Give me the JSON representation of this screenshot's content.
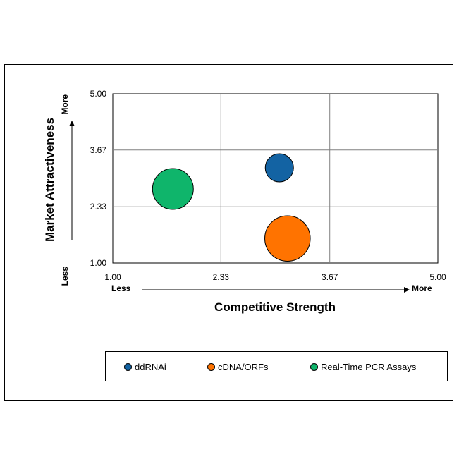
{
  "chart_data": {
    "type": "bubble",
    "title": "",
    "xlabel": "Competitive Strength",
    "ylabel": "Market Attractiveness",
    "x_low_label": "Less",
    "x_high_label": "More",
    "y_low_label": "Less",
    "y_high_label": "More",
    "xlim": [
      1.0,
      5.0
    ],
    "ylim": [
      1.0,
      5.0
    ],
    "xticks": [
      "1.00",
      "2.33",
      "3.67",
      "5.00"
    ],
    "yticks": [
      "1.00",
      "2.33",
      "3.67",
      "5.00"
    ],
    "grid": true,
    "legend_position": "bottom",
    "series": [
      {
        "name": "ddRNAi",
        "x": 3.05,
        "y": 3.25,
        "size": 1.0,
        "color": "#1363a3"
      },
      {
        "name": "cDNA/ORFs",
        "x": 3.15,
        "y": 1.58,
        "size": 2.6,
        "color": "#ff7300"
      },
      {
        "name": "Real-Time PCR Assays",
        "x": 1.74,
        "y": 2.75,
        "size": 2.1,
        "color": "#0fb56b"
      }
    ]
  }
}
